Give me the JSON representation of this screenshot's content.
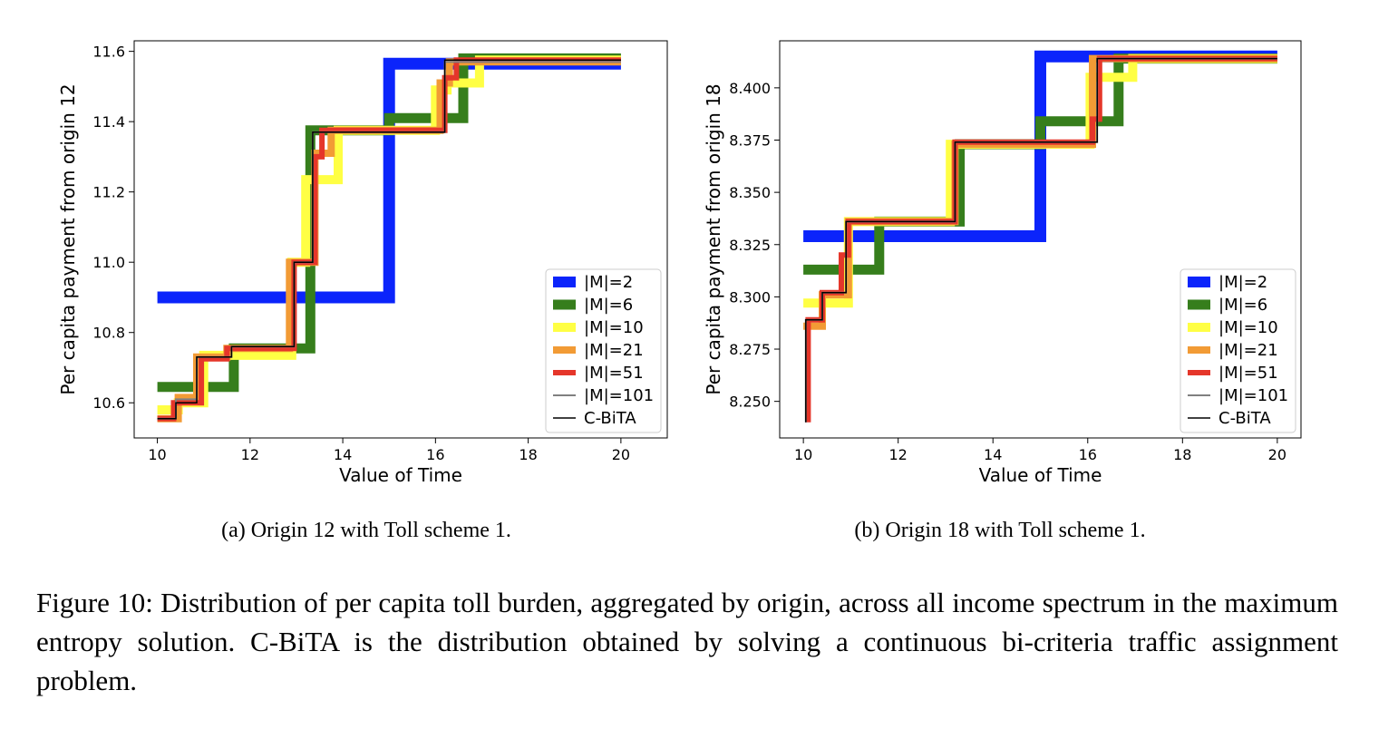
{
  "chart_data": [
    {
      "type": "line",
      "subcaption": "(a) Origin 12 with Toll scheme 1.",
      "xlabel": "Value of Time",
      "ylabel": "Per capita payment from origin 12",
      "xlim": [
        9.5,
        21.0
      ],
      "ylim": [
        10.5,
        11.63
      ],
      "xticks": [
        10,
        12,
        14,
        16,
        18,
        20
      ],
      "yticks": [
        10.6,
        10.8,
        11.0,
        11.2,
        11.4,
        11.6
      ],
      "ytick_labels": [
        "10.6",
        "10.8",
        "11.0",
        "11.2",
        "11.4",
        "11.6"
      ],
      "legend_position": "lower right",
      "series": [
        {
          "name": "|M|=2",
          "color": "#0b24fb",
          "width": 13,
          "x": [
            10,
            15,
            15,
            20
          ],
          "y": [
            10.9,
            10.9,
            11.565,
            11.565
          ]
        },
        {
          "name": "|M|=6",
          "color": "#367e1c",
          "width": 11,
          "x": [
            10,
            11.65,
            11.65,
            13.3,
            13.3,
            15.0,
            15.0,
            16.6,
            16.6,
            20
          ],
          "y": [
            10.645,
            10.645,
            10.755,
            10.755,
            11.375,
            11.375,
            11.41,
            11.41,
            11.58,
            11.58
          ]
        },
        {
          "name": "|M|=10",
          "color": "#ffff44",
          "width": 10,
          "x": [
            10,
            10.45,
            10.45,
            11.0,
            11.0,
            12.9,
            12.9,
            13.2,
            13.2,
            13.9,
            13.9,
            16.0,
            16.0,
            16.25,
            16.25,
            16.95,
            16.95,
            20
          ],
          "y": [
            10.58,
            10.58,
            10.6,
            10.6,
            10.735,
            10.735,
            11.0,
            11.0,
            11.235,
            11.235,
            11.375,
            11.375,
            11.49,
            11.49,
            11.51,
            11.51,
            11.575,
            11.575
          ]
        },
        {
          "name": "|M|=21",
          "color": "#f29b35",
          "width": 8,
          "x": [
            10,
            10.45,
            10.45,
            10.85,
            10.85,
            11.5,
            11.5,
            12.85,
            12.85,
            13.4,
            13.4,
            13.75,
            13.75,
            16.1,
            16.1,
            16.3,
            16.3,
            20
          ],
          "y": [
            10.555,
            10.555,
            10.615,
            10.615,
            10.73,
            10.73,
            10.755,
            10.755,
            11.0,
            11.0,
            11.31,
            11.31,
            11.375,
            11.375,
            11.51,
            11.51,
            11.57,
            11.57
          ]
        },
        {
          "name": "|M|=51",
          "color": "#e5362a",
          "width": 6,
          "x": [
            10,
            10.35,
            10.35,
            10.95,
            10.95,
            11.5,
            11.5,
            12.95,
            12.95,
            13.4,
            13.4,
            13.55,
            13.55,
            16.2,
            16.2,
            16.45,
            16.45,
            20
          ],
          "y": [
            10.555,
            10.555,
            10.6,
            10.6,
            10.725,
            10.725,
            10.755,
            10.755,
            11.0,
            11.0,
            11.3,
            11.3,
            11.375,
            11.375,
            11.525,
            11.525,
            11.575,
            11.575
          ]
        },
        {
          "name": "|M|=101",
          "color": "#808080",
          "width": 2,
          "x": [
            10,
            10.4,
            10.4,
            10.85,
            10.85,
            11.6,
            11.6,
            12.95,
            12.95,
            13.35,
            13.35,
            16.2,
            16.2,
            20
          ],
          "y": [
            10.555,
            10.555,
            10.61,
            10.61,
            10.73,
            10.73,
            10.76,
            10.76,
            11.0,
            11.0,
            11.37,
            11.37,
            11.57,
            11.57
          ]
        },
        {
          "name": "C-BiTA",
          "color": "#000000",
          "width": 1.5,
          "x": [
            10,
            10.4,
            10.4,
            10.85,
            10.85,
            11.6,
            11.6,
            12.95,
            12.95,
            13.35,
            13.35,
            16.2,
            16.2,
            20
          ],
          "y": [
            10.555,
            10.555,
            10.6,
            10.6,
            10.73,
            10.73,
            10.76,
            10.76,
            11.0,
            11.0,
            11.37,
            11.37,
            11.575,
            11.575
          ]
        }
      ]
    },
    {
      "type": "line",
      "subcaption": "(b) Origin 18 with Toll scheme 1.",
      "xlabel": "Value of Time",
      "ylabel": "Per capita payment from origin 18",
      "xlim": [
        9.5,
        20.5
      ],
      "ylim": [
        8.2325,
        8.4225
      ],
      "xticks": [
        10,
        12,
        14,
        16,
        18,
        20
      ],
      "yticks": [
        8.25,
        8.275,
        8.3,
        8.325,
        8.35,
        8.375,
        8.4
      ],
      "ytick_labels": [
        "8.250",
        "8.275",
        "8.300",
        "8.325",
        "8.350",
        "8.375",
        "8.400"
      ],
      "legend_position": "lower right",
      "series": [
        {
          "name": "|M|=2",
          "color": "#0b24fb",
          "width": 13,
          "x": [
            10,
            15,
            15,
            20
          ],
          "y": [
            8.329,
            8.329,
            8.415,
            8.415
          ]
        },
        {
          "name": "|M|=6",
          "color": "#367e1c",
          "width": 11,
          "x": [
            10,
            11.6,
            11.6,
            13.3,
            13.3,
            15.0,
            15.0,
            16.65,
            16.65,
            20
          ],
          "y": [
            8.313,
            8.313,
            8.336,
            8.336,
            8.373,
            8.373,
            8.384,
            8.384,
            8.414,
            8.414
          ]
        },
        {
          "name": "|M|=10",
          "color": "#ffff44",
          "width": 10,
          "x": [
            10,
            10.95,
            10.95,
            13.1,
            13.1,
            16.05,
            16.05,
            16.95,
            16.95,
            20
          ],
          "y": [
            8.297,
            8.297,
            8.336,
            8.336,
            8.373,
            8.373,
            8.405,
            8.405,
            8.414,
            8.414
          ]
        },
        {
          "name": "|M|=21",
          "color": "#f29b35",
          "width": 8,
          "x": [
            10,
            10.4,
            10.4,
            10.95,
            10.95,
            13.2,
            13.2,
            16.1,
            16.1,
            20
          ],
          "y": [
            8.286,
            8.286,
            8.301,
            8.301,
            8.336,
            8.336,
            8.373,
            8.373,
            8.414,
            8.414
          ]
        },
        {
          "name": "|M|=51",
          "color": "#e5362a",
          "width": 6,
          "x": [
            10.1,
            10.1,
            10.4,
            10.4,
            10.8,
            10.8,
            10.95,
            10.95,
            13.2,
            13.2,
            16.1,
            16.1,
            16.25,
            16.25,
            20
          ],
          "y": [
            8.24,
            8.289,
            8.289,
            8.302,
            8.302,
            8.32,
            8.32,
            8.336,
            8.336,
            8.374,
            8.374,
            8.385,
            8.385,
            8.414,
            8.414
          ]
        },
        {
          "name": "|M|=101",
          "color": "#808080",
          "width": 2,
          "x": [
            10.05,
            10.05,
            10.4,
            10.4,
            10.9,
            10.9,
            13.2,
            13.2,
            16.2,
            16.2,
            20
          ],
          "y": [
            8.24,
            8.289,
            8.289,
            8.302,
            8.302,
            8.336,
            8.336,
            8.374,
            8.374,
            8.414,
            8.414
          ]
        },
        {
          "name": "C-BiTA",
          "color": "#000000",
          "width": 1.5,
          "x": [
            10.05,
            10.05,
            10.4,
            10.4,
            10.9,
            10.9,
            13.2,
            13.2,
            16.2,
            16.2,
            20
          ],
          "y": [
            8.24,
            8.289,
            8.289,
            8.302,
            8.302,
            8.336,
            8.336,
            8.374,
            8.374,
            8.414,
            8.414
          ]
        }
      ]
    }
  ],
  "caption": "Figure 10: Distribution of per capita toll burden, aggregated by origin, across all income spectrum in the maximum entropy solution. C-BiTA is the distribution obtained by solving a continuous bi-criteria traffic assignment problem."
}
